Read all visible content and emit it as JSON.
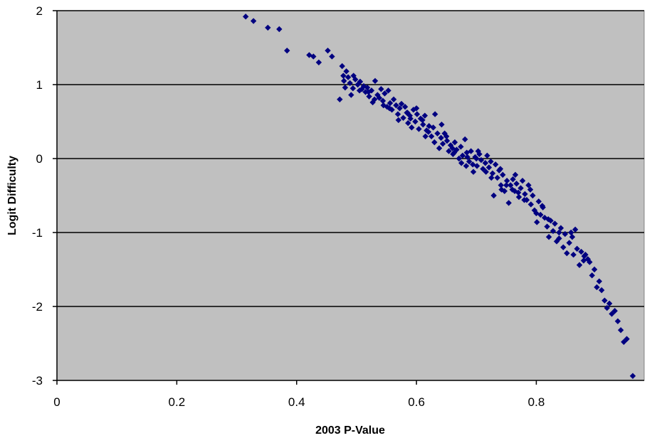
{
  "chart_data": {
    "type": "scatter",
    "title": "",
    "xlabel": "2003 P-Value",
    "ylabel": "Logit Difficulty",
    "xlim": [
      0,
      0.98
    ],
    "ylim": [
      -3,
      2
    ],
    "x_ticks": [
      0,
      0.2,
      0.4,
      0.6,
      0.8
    ],
    "x_tick_labels": [
      "0",
      "0.2",
      "0.4",
      "0.6",
      "0.8"
    ],
    "y_ticks": [
      2,
      1,
      0,
      -1,
      -2,
      -3
    ],
    "y_tick_labels": [
      "2",
      "1",
      "0",
      "-1",
      "-2",
      "-3"
    ],
    "grid": "horizontal major gridlines",
    "legend": "none",
    "colors": {
      "plot_background": "#c0c0c0",
      "marker": "#000080",
      "gridline": "#000000"
    },
    "marker_shape": "diamond",
    "points": [
      [
        0.315,
        1.92
      ],
      [
        0.328,
        1.86
      ],
      [
        0.352,
        1.77
      ],
      [
        0.371,
        1.75
      ],
      [
        0.384,
        1.46
      ],
      [
        0.421,
        1.4
      ],
      [
        0.428,
        1.38
      ],
      [
        0.437,
        1.3
      ],
      [
        0.452,
        1.46
      ],
      [
        0.459,
        1.38
      ],
      [
        0.472,
        0.8
      ],
      [
        0.476,
        1.25
      ],
      [
        0.478,
        1.12
      ],
      [
        0.479,
        1.05
      ],
      [
        0.481,
        0.96
      ],
      [
        0.483,
        1.18
      ],
      [
        0.486,
        1.1
      ],
      [
        0.489,
        1.02
      ],
      [
        0.491,
        0.86
      ],
      [
        0.494,
        0.95
      ],
      [
        0.498,
        1.07
      ],
      [
        0.502,
        1.0
      ],
      [
        0.506,
        1.04
      ],
      [
        0.509,
        0.94
      ],
      [
        0.512,
        0.98
      ],
      [
        0.515,
        0.9
      ],
      [
        0.518,
        0.96
      ],
      [
        0.521,
        0.84
      ],
      [
        0.525,
        0.92
      ],
      [
        0.527,
        0.76
      ],
      [
        0.531,
        1.05
      ],
      [
        0.535,
        0.86
      ],
      [
        0.538,
        0.82
      ],
      [
        0.541,
        0.94
      ],
      [
        0.544,
        0.78
      ],
      [
        0.547,
        0.88
      ],
      [
        0.551,
        0.7
      ],
      [
        0.553,
        0.92
      ],
      [
        0.556,
        0.75
      ],
      [
        0.559,
        0.66
      ],
      [
        0.562,
        0.8
      ],
      [
        0.566,
        0.72
      ],
      [
        0.569,
        0.6
      ],
      [
        0.572,
        0.68
      ],
      [
        0.575,
        0.74
      ],
      [
        0.578,
        0.55
      ],
      [
        0.581,
        0.7
      ],
      [
        0.584,
        0.62
      ],
      [
        0.586,
        0.48
      ],
      [
        0.589,
        0.58
      ],
      [
        0.592,
        0.42
      ],
      [
        0.595,
        0.66
      ],
      [
        0.598,
        0.5
      ],
      [
        0.601,
        0.6
      ],
      [
        0.604,
        0.4
      ],
      [
        0.607,
        0.54
      ],
      [
        0.611,
        0.46
      ],
      [
        0.614,
        0.58
      ],
      [
        0.617,
        0.38
      ],
      [
        0.621,
        0.44
      ],
      [
        0.625,
        0.3
      ],
      [
        0.628,
        0.42
      ],
      [
        0.631,
        0.6
      ],
      [
        0.635,
        0.34
      ],
      [
        0.638,
        0.14
      ],
      [
        0.641,
        0.28
      ],
      [
        0.644,
        0.2
      ],
      [
        0.647,
        0.34
      ],
      [
        0.651,
        0.24
      ],
      [
        0.654,
        0.1
      ],
      [
        0.657,
        0.18
      ],
      [
        0.661,
        0.06
      ],
      [
        0.664,
        0.22
      ],
      [
        0.667,
        0.12
      ],
      [
        0.671,
        0.0
      ],
      [
        0.674,
        0.16
      ],
      [
        0.677,
        0.04
      ],
      [
        0.681,
        0.26
      ],
      [
        0.684,
        0.08
      ],
      [
        0.688,
        -0.04
      ],
      [
        0.691,
        0.1
      ],
      [
        0.694,
        -0.08
      ],
      [
        0.698,
        0.02
      ],
      [
        0.701,
        -0.1
      ],
      [
        0.705,
        0.06
      ],
      [
        0.708,
        -0.02
      ],
      [
        0.711,
        -0.14
      ],
      [
        0.715,
        -0.06
      ],
      [
        0.718,
        0.04
      ],
      [
        0.721,
        -0.12
      ],
      [
        0.724,
        -0.04
      ],
      [
        0.727,
        -0.2
      ],
      [
        0.729,
        -0.5
      ],
      [
        0.732,
        -0.08
      ],
      [
        0.735,
        -0.26
      ],
      [
        0.738,
        -0.16
      ],
      [
        0.741,
        -0.36
      ],
      [
        0.744,
        -0.22
      ],
      [
        0.747,
        -0.44
      ],
      [
        0.751,
        -0.3
      ],
      [
        0.754,
        -0.6
      ],
      [
        0.757,
        -0.36
      ],
      [
        0.761,
        -0.28
      ],
      [
        0.764,
        -0.44
      ],
      [
        0.767,
        -0.34
      ],
      [
        0.771,
        -0.52
      ],
      [
        0.774,
        -0.4
      ],
      [
        0.777,
        -0.3
      ],
      [
        0.781,
        -0.48
      ],
      [
        0.784,
        -0.56
      ],
      [
        0.787,
        -0.36
      ],
      [
        0.791,
        -0.62
      ],
      [
        0.794,
        -0.5
      ],
      [
        0.797,
        -0.7
      ],
      [
        0.801,
        -0.86
      ],
      [
        0.804,
        -0.58
      ],
      [
        0.807,
        -0.76
      ],
      [
        0.811,
        -0.66
      ],
      [
        0.814,
        -0.8
      ],
      [
        0.818,
        -0.92
      ],
      [
        0.821,
        -1.06
      ],
      [
        0.824,
        -0.84
      ],
      [
        0.828,
        -0.98
      ],
      [
        0.831,
        -0.88
      ],
      [
        0.834,
        -1.12
      ],
      [
        0.838,
        -1.0
      ],
      [
        0.841,
        -0.94
      ],
      [
        0.845,
        -1.2
      ],
      [
        0.848,
        -1.02
      ],
      [
        0.851,
        -1.28
      ],
      [
        0.855,
        -1.14
      ],
      [
        0.858,
        -1.0
      ],
      [
        0.862,
        -1.3
      ],
      [
        0.865,
        -0.96
      ],
      [
        0.868,
        -1.22
      ],
      [
        0.872,
        -1.44
      ],
      [
        0.875,
        -1.26
      ],
      [
        0.879,
        -1.38
      ],
      [
        0.882,
        -1.3
      ],
      [
        0.886,
        -1.36
      ],
      [
        0.889,
        -1.4
      ],
      [
        0.893,
        -1.58
      ],
      [
        0.897,
        -1.5
      ],
      [
        0.901,
        -1.74
      ],
      [
        0.905,
        -1.66
      ],
      [
        0.909,
        -1.78
      ],
      [
        0.914,
        -1.92
      ],
      [
        0.918,
        -2.02
      ],
      [
        0.922,
        -1.96
      ],
      [
        0.926,
        -2.1
      ],
      [
        0.931,
        -2.06
      ],
      [
        0.936,
        -2.2
      ],
      [
        0.941,
        -2.32
      ],
      [
        0.946,
        -2.48
      ],
      [
        0.951,
        -2.44
      ],
      [
        0.961,
        -2.94
      ],
      [
        0.585,
        0.62
      ],
      [
        0.6,
        0.68
      ],
      [
        0.62,
        0.36
      ],
      [
        0.642,
        0.46
      ],
      [
        0.66,
        0.14
      ],
      [
        0.685,
        0.02
      ],
      [
        0.7,
        0.0
      ],
      [
        0.716,
        -0.18
      ],
      [
        0.742,
        -0.42
      ],
      [
        0.76,
        -0.42
      ],
      [
        0.78,
        -0.56
      ],
      [
        0.8,
        -0.74
      ],
      [
        0.82,
        -0.82
      ],
      [
        0.838,
        -1.08
      ],
      [
        0.86,
        -1.06
      ],
      [
        0.88,
        -1.32
      ],
      [
        0.505,
        0.92
      ],
      [
        0.53,
        0.8
      ],
      [
        0.555,
        0.68
      ],
      [
        0.57,
        0.52
      ],
      [
        0.61,
        0.52
      ],
      [
        0.63,
        0.22
      ],
      [
        0.65,
        0.3
      ],
      [
        0.675,
        -0.06
      ],
      [
        0.695,
        -0.18
      ],
      [
        0.725,
        -0.26
      ],
      [
        0.75,
        -0.36
      ],
      [
        0.77,
        -0.46
      ],
      [
        0.79,
        -0.42
      ],
      [
        0.81,
        -0.64
      ],
      [
        0.74,
        -0.14
      ],
      [
        0.765,
        -0.22
      ],
      [
        0.703,
        0.1
      ],
      [
        0.683,
        -0.1
      ],
      [
        0.663,
        0.08
      ],
      [
        0.59,
        0.54
      ],
      [
        0.615,
        0.3
      ],
      [
        0.545,
        0.72
      ],
      [
        0.52,
        0.9
      ],
      [
        0.495,
        1.12
      ]
    ]
  }
}
